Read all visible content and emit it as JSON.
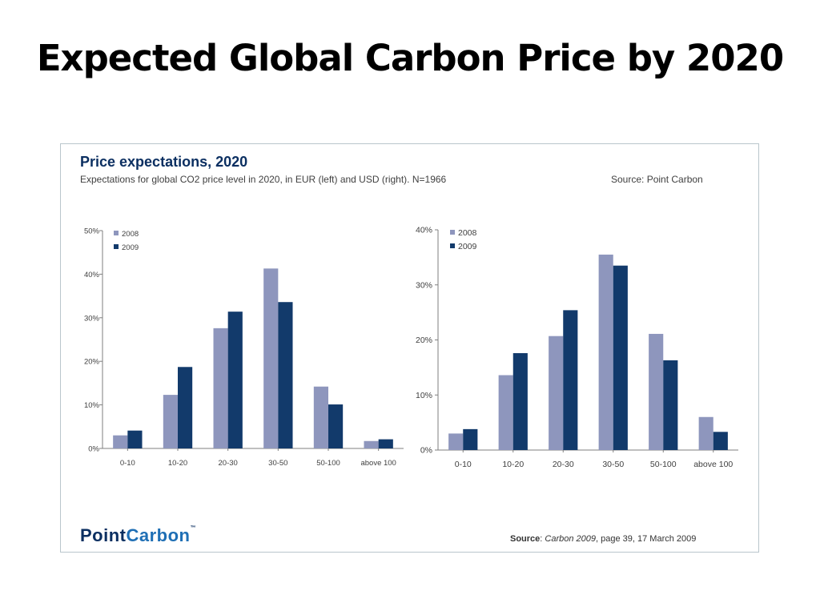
{
  "slide": {
    "title": "Expected Global Carbon Price by 2020"
  },
  "panel": {
    "title": "Price expectations, 2020",
    "subtitle": "Expectations for global CO2 price level in 2020, in EUR (left) and USD (right). N=1966",
    "source": "Source: Point Carbon",
    "logo_part1": "Point",
    "logo_part2": "Carbon",
    "logo_tm": "™",
    "citation_label": "Source",
    "citation_sep": ": ",
    "citation_work": "Carbon 2009",
    "citation_rest": ", page 39, 17 March 2009"
  },
  "colors": {
    "series_2008": "#8e96bd",
    "series_2009": "#123a6b",
    "axis": "#7f7f7f",
    "text": "#404040"
  },
  "chart_data": [
    {
      "type": "bar",
      "currency": "EUR",
      "categories": [
        "0-10",
        "10-20",
        "20-30",
        "30-50",
        "50-100",
        "above 100"
      ],
      "series": [
        {
          "name": "2008",
          "values": [
            3,
            12.3,
            27.6,
            41.3,
            14.2,
            1.7
          ]
        },
        {
          "name": "2009",
          "values": [
            4.1,
            18.7,
            31.4,
            33.6,
            10.1,
            2.1
          ]
        }
      ],
      "ylim": [
        0,
        50
      ],
      "yticks": [
        0,
        10,
        20,
        30,
        40,
        50
      ],
      "ytick_labels": [
        "0%",
        "10%",
        "20%",
        "30%",
        "40%",
        "50%"
      ],
      "legend": "top-left",
      "grid": false
    },
    {
      "type": "bar",
      "currency": "USD",
      "categories": [
        "0-10",
        "10-20",
        "20-30",
        "30-50",
        "50-100",
        "above 100"
      ],
      "series": [
        {
          "name": "2008",
          "values": [
            3,
            13.6,
            20.7,
            35.5,
            21.1,
            6
          ]
        },
        {
          "name": "2009",
          "values": [
            3.8,
            17.6,
            25.4,
            33.5,
            16.3,
            3.3
          ]
        }
      ],
      "ylim": [
        0,
        40
      ],
      "yticks": [
        0,
        10,
        20,
        30,
        40
      ],
      "ytick_labels": [
        "0%",
        "10%",
        "20%",
        "30%",
        "40%"
      ],
      "legend": "top-left",
      "grid": false
    }
  ]
}
